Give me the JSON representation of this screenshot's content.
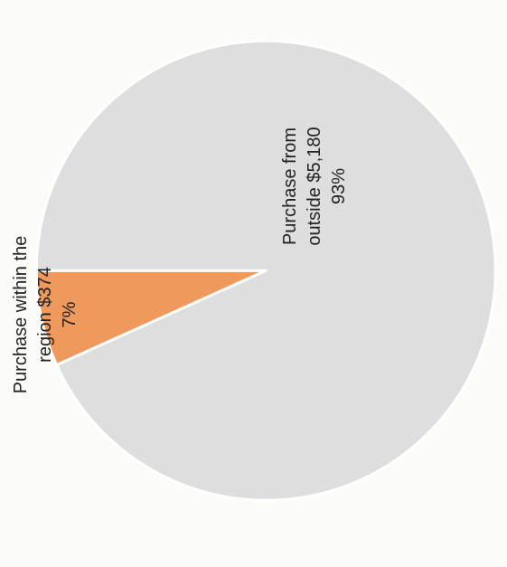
{
  "chart_data": {
    "type": "pie",
    "title": "",
    "slices": [
      {
        "label": "Purchase within the region",
        "value": 374,
        "value_label": "$374",
        "percent_label": "7%",
        "label_lines": [
          "Purchase within the",
          "region $374",
          "7%"
        ],
        "color": "#ef9a5c"
      },
      {
        "label": "Purchase from outside",
        "value": 5180,
        "value_label": "$5,180",
        "percent_label": "93%",
        "label_lines": [
          "Purchase from",
          "outside $5,180",
          "93%"
        ],
        "color": "#dedede"
      }
    ],
    "orientation": "rotated 90 degrees counter-clockwise",
    "legend": "none",
    "grid": false
  }
}
